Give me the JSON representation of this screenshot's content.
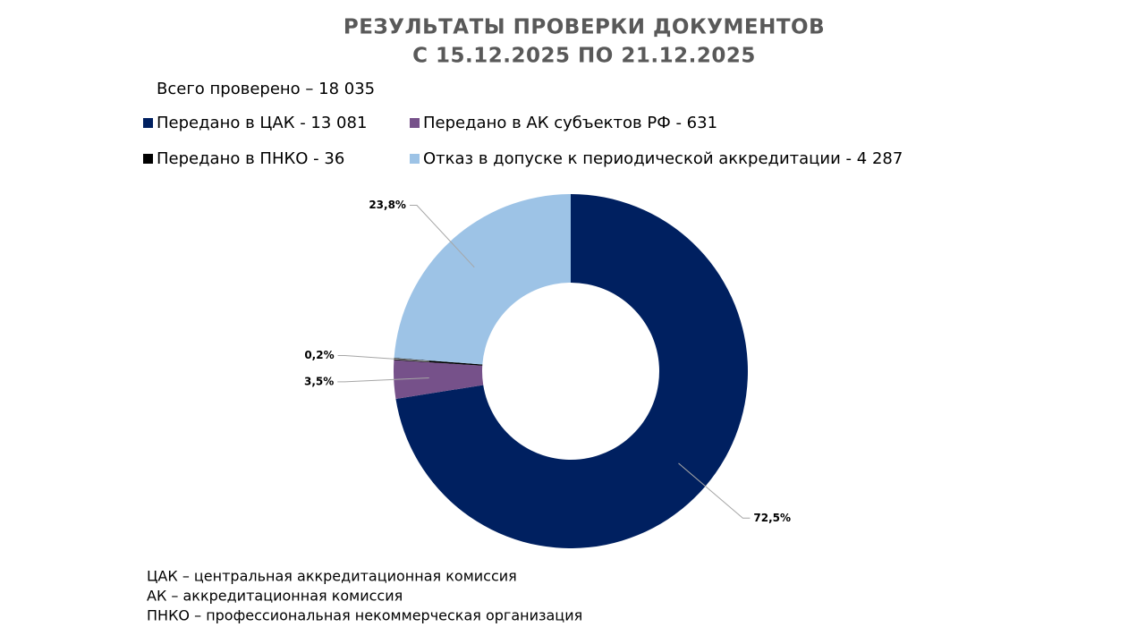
{
  "chart_data": {
    "type": "pie",
    "title": [
      "РЕЗУЛЬТАТЫ ПРОВЕРКИ ДОКУМЕНТОВ",
      "С 15.12.2025  ПО 21.12.2025"
    ],
    "subtitle": "Всего проверено – 18 035",
    "categories": [
      "Передано в ЦАК - 13 081",
      "Передано в АК субъектов РФ - 631",
      "Передано в ПНКО - 36",
      "Отказ в допуске к периодической аккредитации - 4 287"
    ],
    "values": [
      72.5,
      3.5,
      0.2,
      23.8
    ],
    "value_labels": [
      "72,5%",
      "3,5%",
      "0,2%",
      "23,8%"
    ],
    "colors": [
      "#002060",
      "#76518a",
      "#000000",
      "#9dc3e6"
    ],
    "donut": true,
    "legend": "top",
    "annotations": [
      "ЦАК – центральная аккредитационная комиссия",
      "АК – аккредитационная комиссия",
      "ПНКО – профессиональная некоммерческая организация"
    ]
  }
}
